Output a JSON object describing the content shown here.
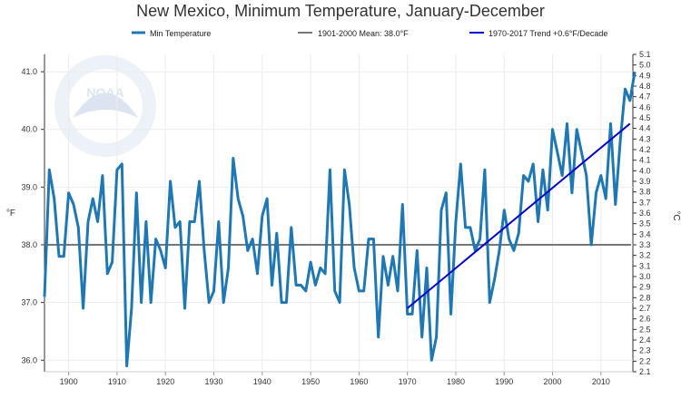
{
  "chart_data": {
    "type": "line",
    "title": "New Mexico, Minimum Temperature, January-December",
    "ylabel": "°F",
    "y2label": "°C",
    "xlim": [
      1895,
      2017
    ],
    "ylim": [
      35.8,
      41.3
    ],
    "y2lim": [
      2.1,
      5.1
    ],
    "x_ticks": [
      "1900",
      "1910",
      "1920",
      "1930",
      "1940",
      "1950",
      "1960",
      "1970",
      "1980",
      "1990",
      "2000",
      "2010"
    ],
    "y_ticks": [
      "36.0",
      "37.0",
      "38.0",
      "39.0",
      "40.0",
      "41.0"
    ],
    "y2_ticks": [
      "2.1",
      "2.2",
      "2.3",
      "2.4",
      "2.5",
      "2.6",
      "2.7",
      "2.8",
      "2.9",
      "3.0",
      "3.1",
      "3.2",
      "3.3",
      "3.4",
      "3.5",
      "3.6",
      "3.7",
      "3.8",
      "3.9",
      "4.0",
      "4.1",
      "4.2",
      "4.3",
      "4.4",
      "4.5",
      "4.6",
      "4.7",
      "4.8",
      "4.9",
      "5.0",
      "5.1"
    ],
    "grid": true,
    "legend": "top",
    "series": [
      {
        "name": "Min Temperature",
        "color": "#1f77b4",
        "x": [
          1895,
          1896,
          1897,
          1898,
          1899,
          1900,
          1901,
          1902,
          1903,
          1904,
          1905,
          1906,
          1907,
          1908,
          1909,
          1910,
          1911,
          1912,
          1913,
          1914,
          1915,
          1916,
          1917,
          1918,
          1919,
          1920,
          1921,
          1922,
          1923,
          1924,
          1925,
          1926,
          1927,
          1928,
          1929,
          1930,
          1931,
          1932,
          1933,
          1934,
          1935,
          1936,
          1937,
          1938,
          1939,
          1940,
          1941,
          1942,
          1943,
          1944,
          1945,
          1946,
          1947,
          1948,
          1949,
          1950,
          1951,
          1952,
          1953,
          1954,
          1955,
          1956,
          1957,
          1958,
          1959,
          1960,
          1961,
          1962,
          1963,
          1964,
          1965,
          1966,
          1967,
          1968,
          1969,
          1970,
          1971,
          1972,
          1973,
          1974,
          1975,
          1976,
          1977,
          1978,
          1979,
          1980,
          1981,
          1982,
          1983,
          1984,
          1985,
          1986,
          1987,
          1988,
          1989,
          1990,
          1991,
          1992,
          1993,
          1994,
          1995,
          1996,
          1997,
          1998,
          1999,
          2000,
          2001,
          2002,
          2003,
          2004,
          2005,
          2006,
          2007,
          2008,
          2009,
          2010,
          2011,
          2012,
          2013,
          2014,
          2015,
          2016,
          2017
        ],
        "values": [
          37.1,
          39.3,
          38.8,
          37.8,
          37.8,
          38.9,
          38.7,
          38.3,
          36.9,
          38.4,
          38.8,
          38.4,
          39.2,
          37.5,
          37.7,
          39.3,
          39.4,
          35.9,
          36.9,
          38.9,
          37.0,
          38.4,
          37.0,
          38.1,
          37.9,
          37.6,
          39.1,
          38.3,
          38.4,
          36.9,
          38.4,
          38.4,
          39.1,
          37.9,
          37.0,
          37.2,
          38.4,
          37.0,
          37.6,
          39.5,
          38.8,
          38.5,
          37.9,
          38.1,
          37.5,
          38.5,
          38.8,
          37.3,
          38.2,
          37.0,
          37.0,
          38.3,
          37.3,
          37.3,
          37.2,
          37.7,
          37.3,
          37.6,
          37.5,
          39.3,
          37.2,
          37.0,
          39.3,
          38.7,
          37.6,
          37.2,
          37.2,
          38.1,
          38.1,
          36.4,
          37.8,
          37.3,
          37.8,
          37.2,
          38.7,
          36.8,
          36.8,
          37.9,
          36.4,
          37.6,
          36.0,
          36.4,
          38.6,
          38.9,
          36.8,
          38.4,
          39.4,
          38.3,
          38.3,
          37.9,
          38.1,
          39.3,
          37.0,
          37.4,
          37.9,
          38.6,
          38.1,
          37.9,
          38.2,
          39.2,
          39.1,
          39.4,
          38.4,
          39.3,
          38.6,
          40.0,
          39.6,
          39.2,
          40.1,
          38.9,
          40.0,
          39.6,
          39.2,
          38.0,
          38.9,
          39.2,
          38.8,
          40.1,
          38.7,
          39.8,
          40.7,
          40.5,
          41.0
        ]
      },
      {
        "name": "1901-2000 Mean: 38.0°F",
        "color": "#777777",
        "value": 38.0
      },
      {
        "name": "1970-2017 Trend +0.6°F/Decade",
        "color": "#0000cc",
        "x": [
          1970,
          2016
        ],
        "values": [
          36.9,
          40.1
        ]
      }
    ]
  }
}
